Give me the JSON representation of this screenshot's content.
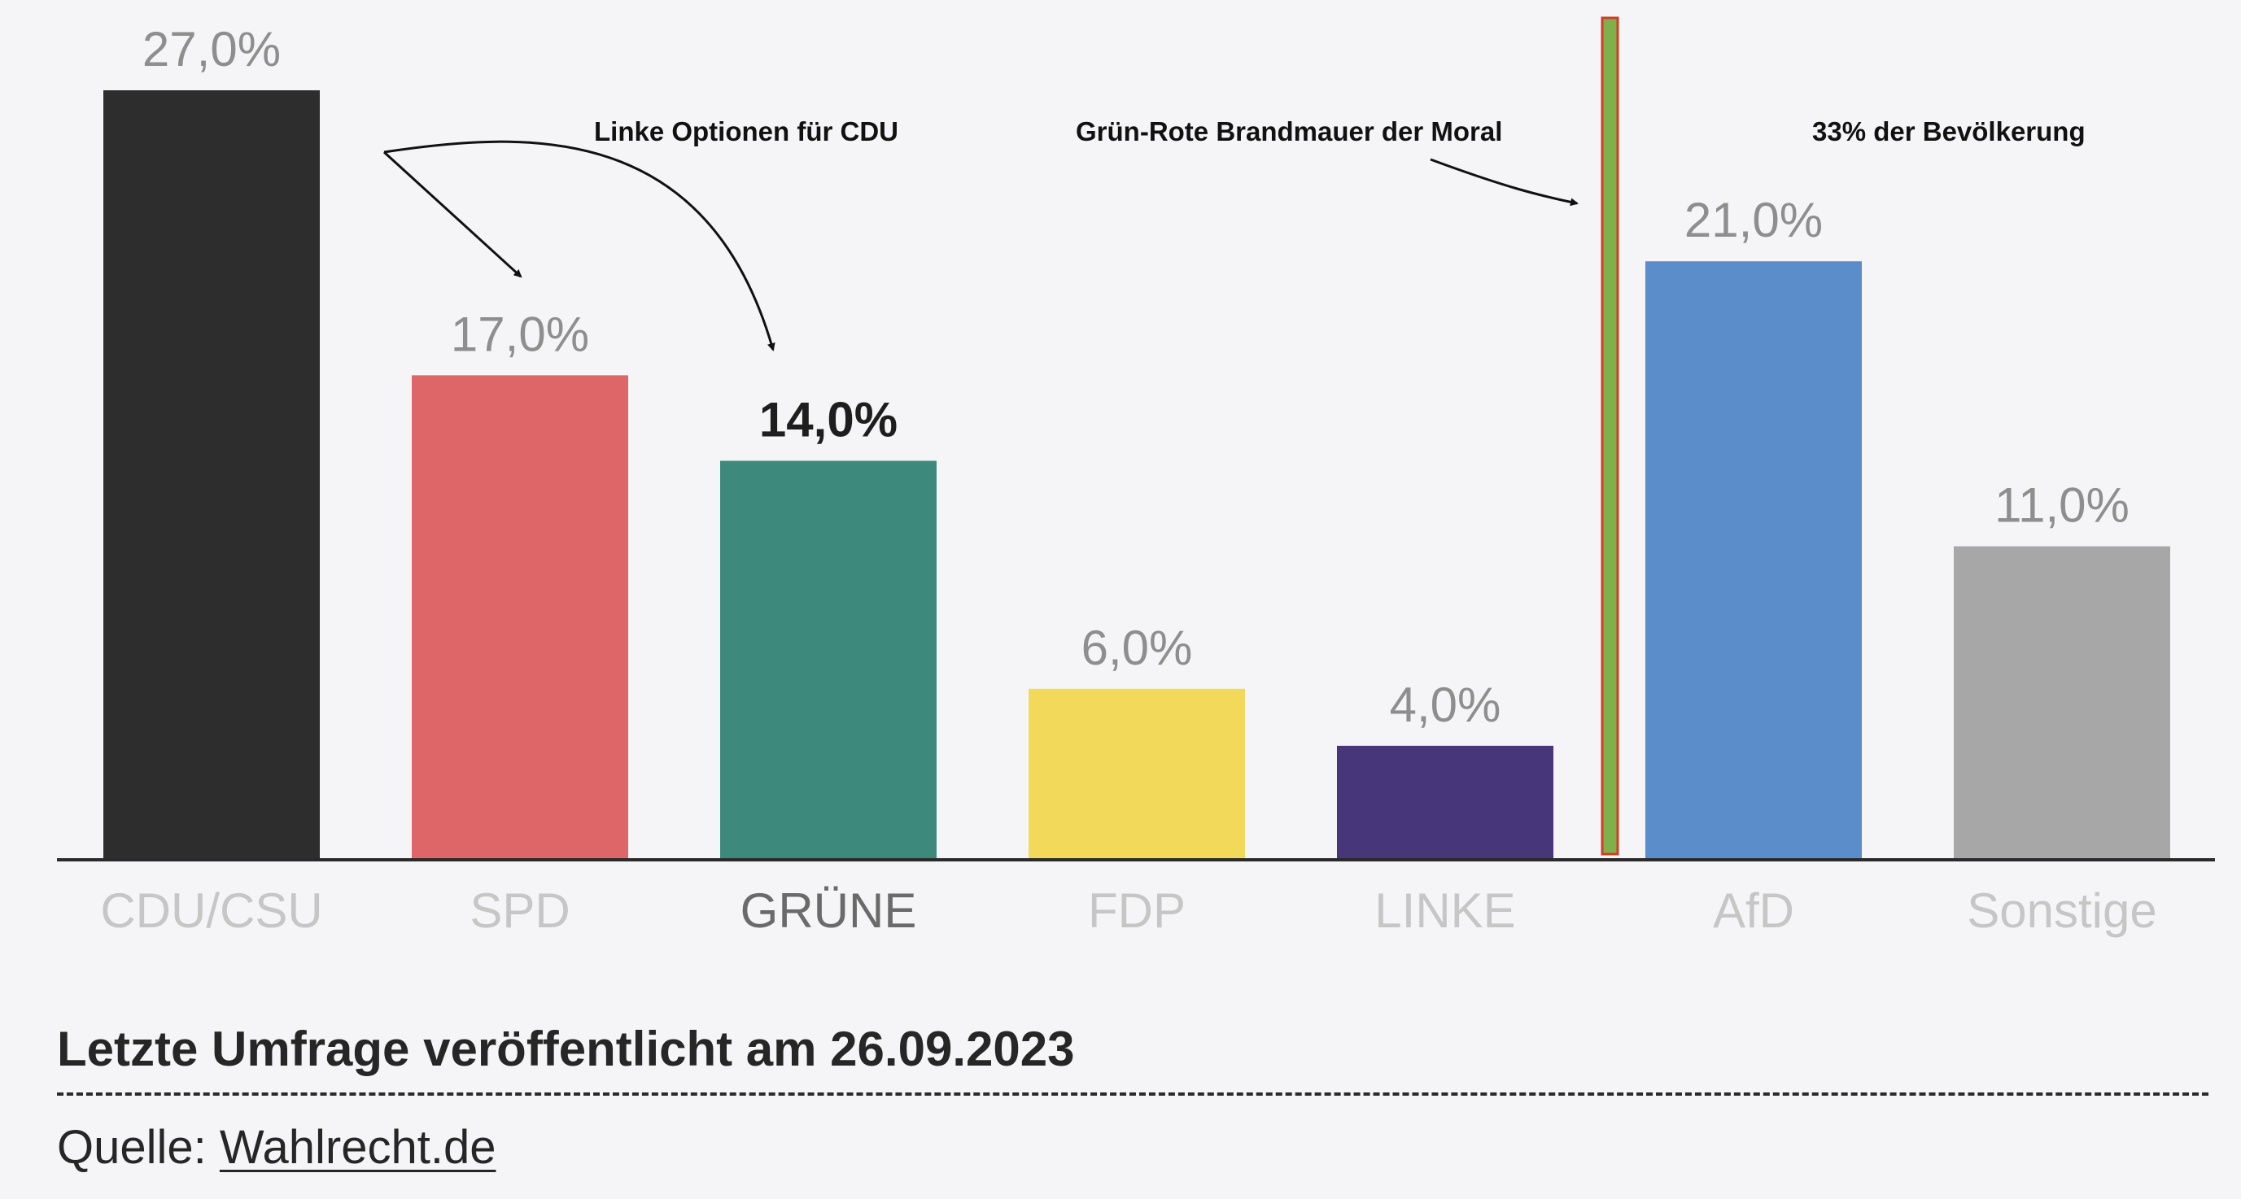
{
  "chart_data": {
    "type": "bar",
    "categories": [
      "CDU/CSU",
      "SPD",
      "GRÜNE",
      "FDP",
      "LINKE",
      "AfD",
      "Sonstige"
    ],
    "values": [
      27.0,
      17.0,
      14.0,
      6.0,
      4.0,
      21.0,
      11.0
    ],
    "value_labels": [
      "27,0%",
      "17,0%",
      "14,0%",
      "6,0%",
      "4,0%",
      "21,0%",
      "11,0%"
    ],
    "colors": [
      "#2d2d2d",
      "#de6568",
      "#3d8a7c",
      "#f2d95a",
      "#47377a",
      "#5b8dca",
      "#a7a7a7"
    ],
    "highlighted_category": "GRÜNE",
    "ylim": [
      0,
      27
    ],
    "title": "",
    "xlabel": "",
    "ylabel": "",
    "grid": false,
    "annotations": [
      {
        "text": "Linke Optionen für CDU",
        "from": "CDU/CSU",
        "targets": [
          "SPD",
          "GRÜNE"
        ]
      },
      {
        "text": "Grün-Rote Brandmauer der Moral",
        "target": "divider between LINKE and AfD"
      },
      {
        "text": "33% der Bevölkerung"
      }
    ],
    "divider": {
      "between": [
        "LINKE",
        "AfD"
      ],
      "fill": "#7fb04a",
      "stroke": "#d23a2a"
    }
  },
  "footer": {
    "title": "Letzte Umfrage veröffentlicht am 26.09.2023",
    "source_prefix": "Quelle: ",
    "source_link": "Wahlrecht.de"
  }
}
